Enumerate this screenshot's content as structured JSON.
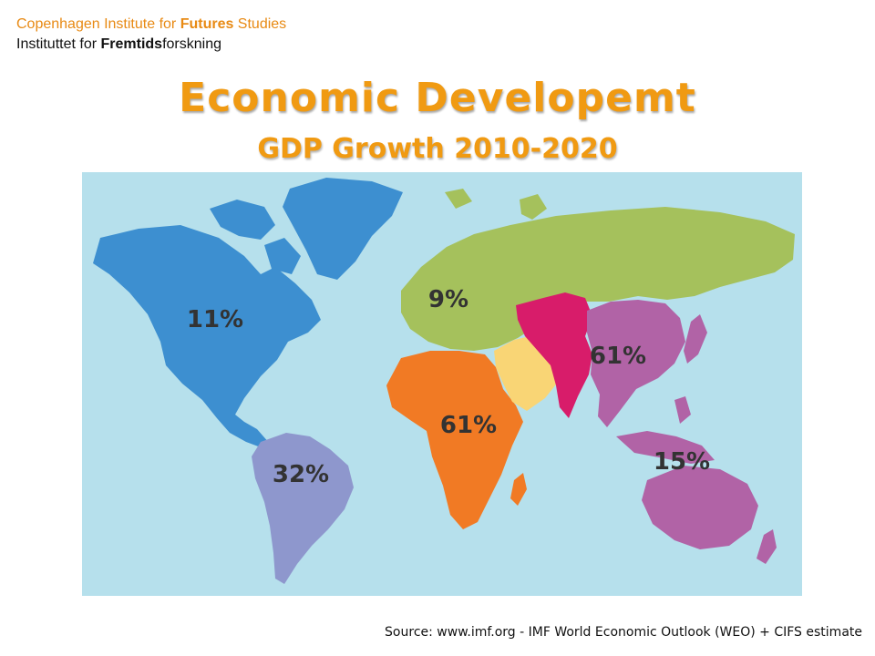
{
  "header": {
    "org_en_pre": "Copenhagen Institute for ",
    "org_en_bold": "Futures",
    "org_en_post": " Studies",
    "org_dk_pre": "Instituttet for ",
    "org_dk_bold": "Fremtids",
    "org_dk_post": "forskning"
  },
  "title": "Economic Developemt",
  "subtitle": "GDP Growth 2010-2020",
  "map": {
    "ocean_color": "#b6e0ec",
    "regions": [
      {
        "name": "north-america",
        "label": "11%",
        "color": "#3d8fd0"
      },
      {
        "name": "south-america",
        "label": "32%",
        "color": "#8e97cd"
      },
      {
        "name": "europe-russia",
        "label": "9%",
        "color": "#a5c15c"
      },
      {
        "name": "africa",
        "label": "61%",
        "color": "#f17a24"
      },
      {
        "name": "middle-east",
        "label": "",
        "color": "#f9d575"
      },
      {
        "name": "south-asia",
        "label": "",
        "color": "#d81c6a"
      },
      {
        "name": "east-asia",
        "label": "61%",
        "color": "#b163a6"
      },
      {
        "name": "oceania",
        "label": "15%",
        "color": "#b163a6"
      }
    ]
  },
  "source": "Source: www.imf.org - IMF World Economic Outlook (WEO) + CIFS estimate"
}
